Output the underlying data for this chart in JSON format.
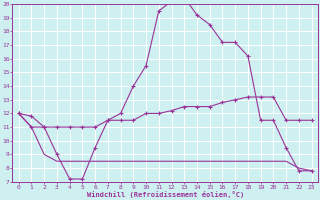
{
  "xlabel": "Windchill (Refroidissement éolien,°C)",
  "background_color": "#cff0f0",
  "grid_color": "#ffffff",
  "line_color": "#993399",
  "xlim": [
    -0.5,
    23.5
  ],
  "ylim": [
    7,
    20
  ],
  "xticks": [
    0,
    1,
    2,
    3,
    4,
    5,
    6,
    7,
    8,
    9,
    10,
    11,
    12,
    13,
    14,
    15,
    16,
    17,
    18,
    19,
    20,
    21,
    22,
    23
  ],
  "yticks": [
    7,
    8,
    9,
    10,
    11,
    12,
    13,
    14,
    15,
    16,
    17,
    18,
    19,
    20
  ],
  "line1_x": [
    0,
    1,
    2,
    3,
    4,
    5,
    6,
    7,
    8,
    9,
    10,
    11,
    12,
    13,
    14,
    15,
    16,
    17,
    18,
    19,
    20,
    21,
    22,
    23
  ],
  "line1_y": [
    12,
    11.8,
    11,
    9,
    7.2,
    7.2,
    9.5,
    11.5,
    12,
    14,
    15.5,
    19.5,
    20.2,
    20.5,
    19.2,
    18.5,
    17.2,
    17.2,
    16.2,
    11.5,
    11.5,
    9.5,
    7.8,
    7.8
  ],
  "line2_x": [
    0,
    1,
    2,
    3,
    4,
    5,
    6,
    7,
    8,
    9,
    10,
    11,
    12,
    13,
    14,
    15,
    16,
    17,
    18,
    19,
    20,
    21,
    22,
    23
  ],
  "line2_y": [
    12,
    11,
    11,
    11,
    11,
    11,
    11,
    11.5,
    11.5,
    11.5,
    12,
    12,
    12.2,
    12.5,
    12.5,
    12.5,
    12.8,
    13,
    13.2,
    13.2,
    13.2,
    11.5,
    11.5,
    11.5
  ],
  "line3_x": [
    0,
    1,
    2,
    3,
    4,
    5,
    6,
    7,
    8,
    9,
    10,
    11,
    12,
    13,
    14,
    15,
    16,
    17,
    18,
    19,
    20,
    21,
    22,
    23
  ],
  "line3_y": [
    12,
    11,
    9,
    8.5,
    8.5,
    8.5,
    8.5,
    8.5,
    8.5,
    8.5,
    8.5,
    8.5,
    8.5,
    8.5,
    8.5,
    8.5,
    8.5,
    8.5,
    8.5,
    8.5,
    8.5,
    8.5,
    8.0,
    7.8
  ]
}
